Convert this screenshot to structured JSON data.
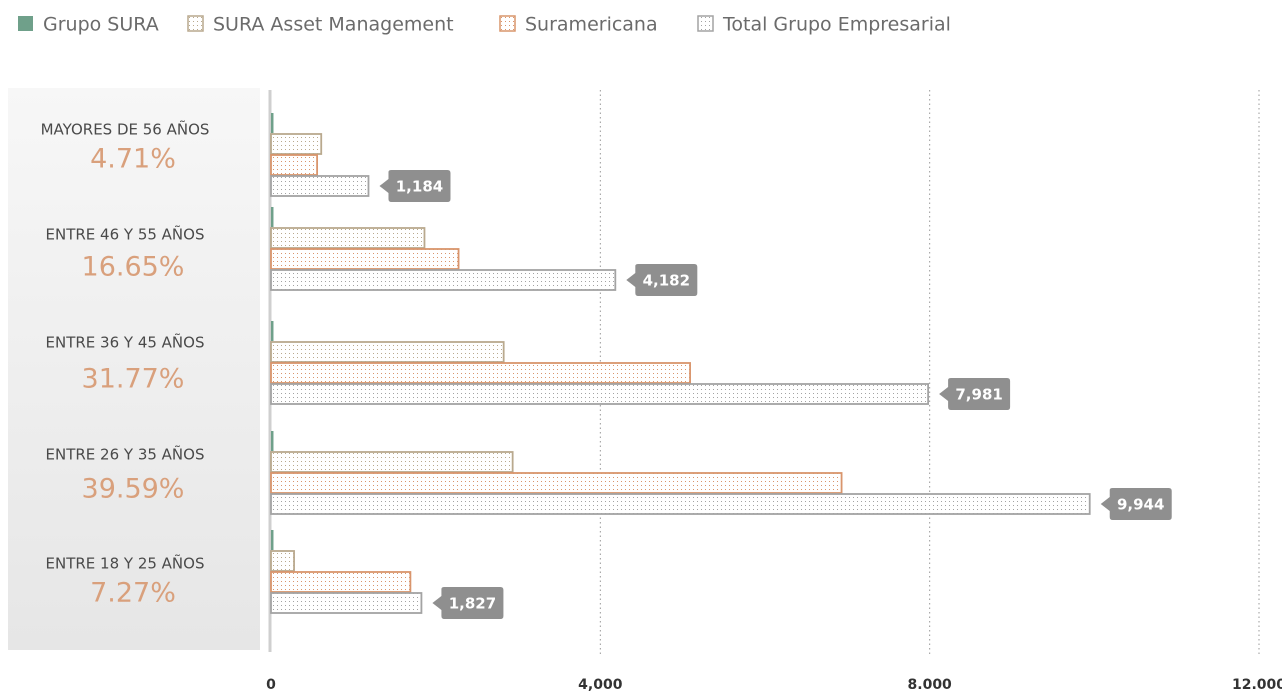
{
  "chart_data": {
    "type": "hbar",
    "legend": "top-left",
    "grid": true,
    "categories": [
      "MAYORES DE 56 AÑOS",
      "ENTRE 46 Y 55 AÑOS",
      "ENTRE 36 Y 45 AÑOS",
      "ENTRE 26 Y 35 AÑOS",
      "ENTRE 18 Y 25 AÑOS"
    ],
    "shares": [
      4.71,
      16.65,
      31.77,
      39.59,
      7.27
    ],
    "share_labels": [
      "4.71%",
      "16.65%",
      "31.77%",
      "39.59%",
      "7.27%"
    ],
    "series": [
      {
        "name": "Grupo SURA",
        "color": "#6fa08a",
        "pattern": false,
        "values": [
          30,
          30,
          30,
          30,
          30
        ]
      },
      {
        "name": "SURA Asset Management",
        "color": "#b9a98e",
        "pattern": true,
        "values": [
          610,
          1864,
          2826,
          2935,
          280
        ]
      },
      {
        "name": "Suramericana",
        "color": "#d9956c",
        "pattern": true,
        "values": [
          560,
          2278,
          5090,
          6930,
          1693
        ]
      },
      {
        "name": "Total Grupo Empresarial",
        "color": "#a3a3a3",
        "pattern": true,
        "values": [
          1184,
          4182,
          7981,
          9944,
          1827
        ],
        "value_labels": [
          "1,184",
          "4,182",
          "7,981",
          "9,944",
          "1,827"
        ]
      }
    ],
    "xlim": [
      0,
      12000
    ],
    "xticks": [
      0,
      {
        "value": 4000,
        "label": "4,000"
      },
      {
        "value": 8000,
        "label": "8.000"
      },
      {
        "value": 12000,
        "label": "12.000"
      }
    ]
  }
}
